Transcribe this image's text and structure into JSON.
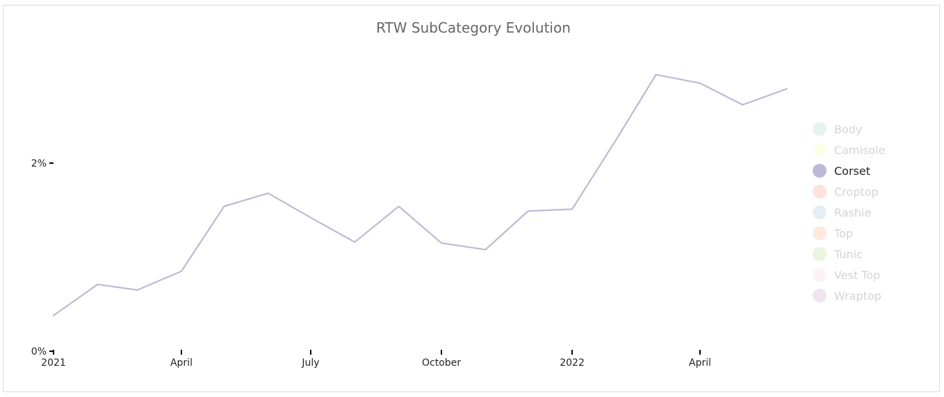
{
  "chart_data": {
    "type": "line",
    "title": "RTW SubCategory Evolution",
    "xlabel": "",
    "ylabel": "",
    "x_ticks": [
      {
        "date": "2021-01-01",
        "label": "2021"
      },
      {
        "date": "2021-04-01",
        "label": "April"
      },
      {
        "date": "2021-07-01",
        "label": "July"
      },
      {
        "date": "2021-10-01",
        "label": "October"
      },
      {
        "date": "2022-01-01",
        "label": "2022"
      },
      {
        "date": "2022-04-01",
        "label": "April"
      }
    ],
    "y_ticks": [
      {
        "value": 0,
        "label": "0%"
      },
      {
        "value": 2,
        "label": "2%"
      }
    ],
    "xlim": [
      "2021-01-01",
      "2022-06-01"
    ],
    "ylim": [
      0,
      3.1
    ],
    "grid": false,
    "legend_position": "right",
    "series": [
      {
        "name": "Corset",
        "color": "#bcb8d8",
        "x": [
          "2021-01-01",
          "2021-02-01",
          "2021-03-01",
          "2021-04-01",
          "2021-05-01",
          "2021-06-01",
          "2021-07-01",
          "2021-08-01",
          "2021-09-01",
          "2021-10-01",
          "2021-11-01",
          "2021-12-01",
          "2022-01-01",
          "2022-02-01",
          "2022-03-01",
          "2022-04-01",
          "2022-05-01",
          "2022-06-01"
        ],
        "values": [
          0.38,
          0.71,
          0.65,
          0.85,
          1.54,
          1.68,
          1.42,
          1.16,
          1.54,
          1.15,
          1.08,
          1.49,
          1.51,
          2.25,
          2.94,
          2.85,
          2.62,
          2.79
        ]
      }
    ],
    "legend": [
      {
        "label": "Body",
        "color": "#e6f4f1",
        "active": false
      },
      {
        "label": "Camisole",
        "color": "#fdfde8",
        "active": false
      },
      {
        "label": "Corset",
        "color": "#bcb8d8",
        "active": true
      },
      {
        "label": "Croptop",
        "color": "#fde2de",
        "active": false
      },
      {
        "label": "Rashie",
        "color": "#e5eef5",
        "active": false
      },
      {
        "label": "Top",
        "color": "#feeadb",
        "active": false
      },
      {
        "label": "Tunic",
        "color": "#e9f5e1",
        "active": false
      },
      {
        "label": "Vest Top",
        "color": "#fcf2f7",
        "active": false
      },
      {
        "label": "Wraptop",
        "color": "#f0e5ef",
        "active": false
      }
    ],
    "legend_active_text_color": "#222222",
    "legend_inactive_text_color": "#d4d4d4"
  }
}
